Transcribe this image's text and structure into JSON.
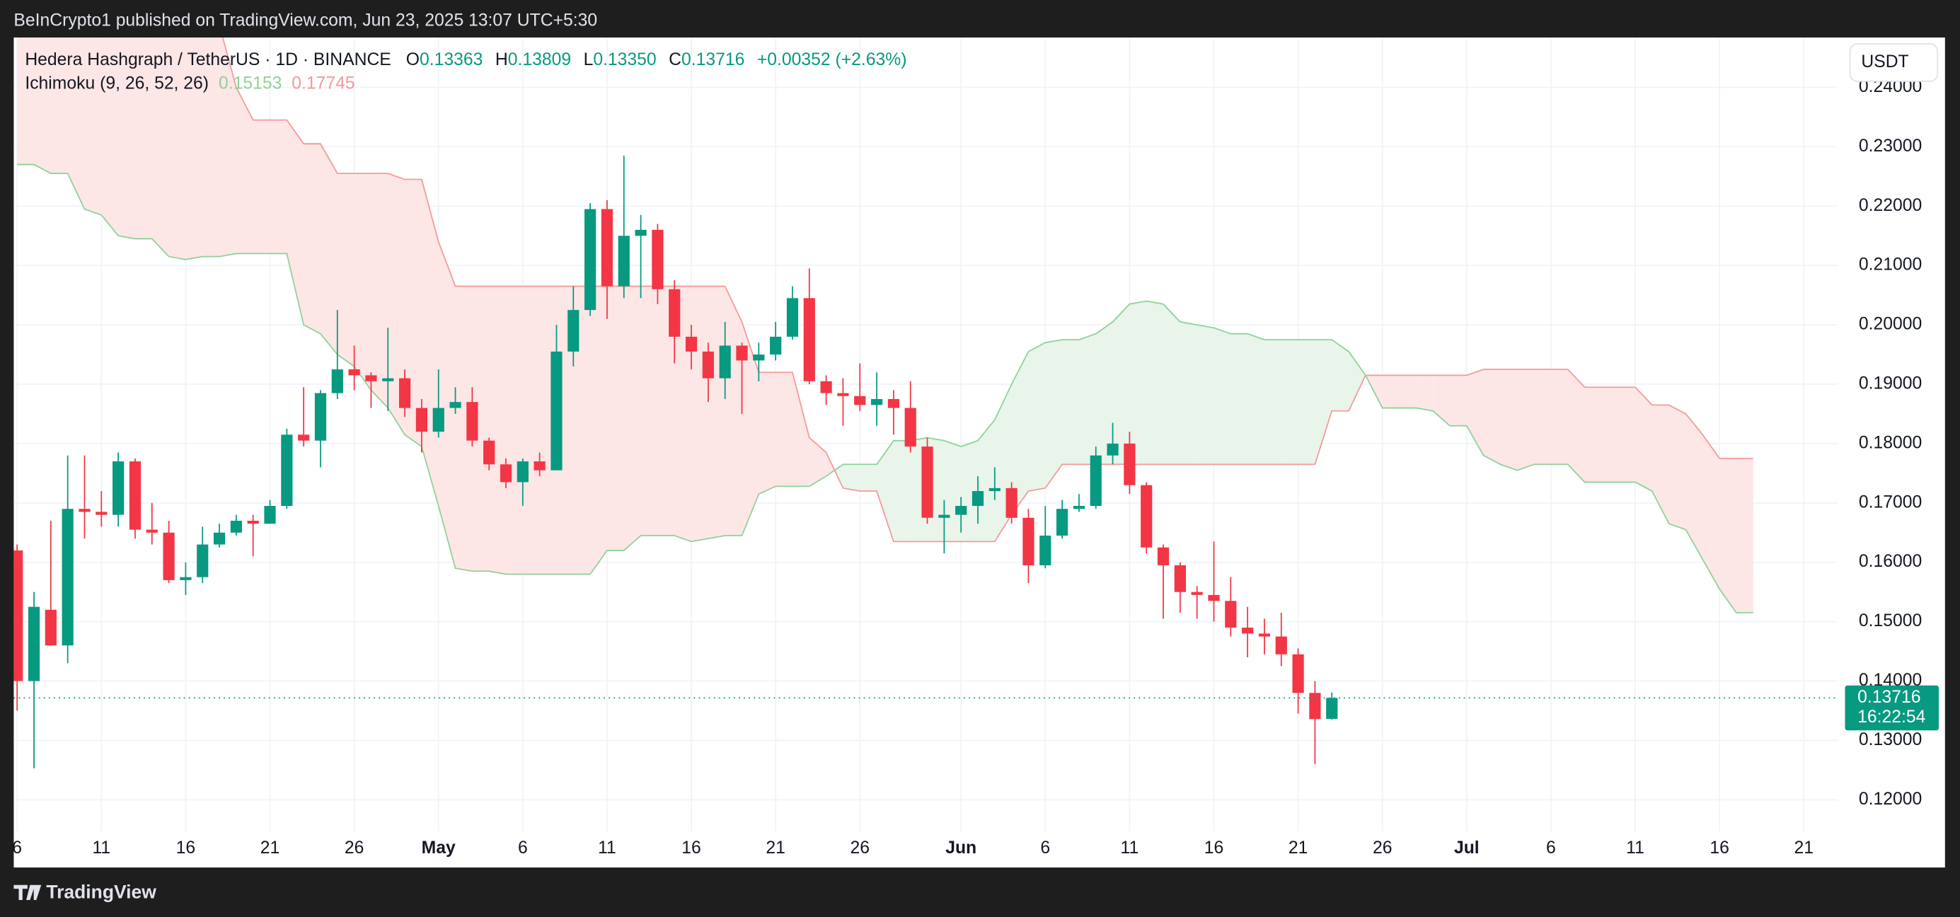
{
  "header": {
    "publisher": "BeInCrypto1 published on TradingView.com, Jun 23, 2025 13:07 UTC+5:30",
    "footer_logo": "TradingView"
  },
  "chart_data": {
    "type": "candlestick",
    "symbol": "Hedera Hashgraph / TetherUS · 1D · BINANCE",
    "legend": {
      "open_key": "O",
      "open": "0.13363",
      "high_key": "H",
      "high": "0.13809",
      "low_key": "L",
      "low": "0.13350",
      "close_key": "C",
      "close": "0.13716",
      "change": "+0.00352 (+2.63%)"
    },
    "currency": "USDT",
    "countdown": "16:22:54",
    "up_color": "#089981",
    "down_color": "#f23645",
    "open": [
      0.162,
      0.14,
      0.152,
      0.146,
      0.169,
      0.1685,
      0.168,
      0.177,
      0.1655,
      0.165,
      0.157,
      0.1575,
      0.163,
      0.165,
      0.167,
      0.1665,
      0.1695,
      0.1815,
      0.1805,
      0.1885,
      0.1925,
      0.1915,
      0.1905,
      0.191,
      0.186,
      0.182,
      0.186,
      0.187,
      0.1805,
      0.1765,
      0.1735,
      0.177,
      0.1755,
      0.1955,
      0.2025,
      0.2195,
      0.2065,
      0.215,
      0.216,
      0.206,
      0.198,
      0.1955,
      0.191,
      0.1965,
      0.194,
      0.195,
      0.198,
      0.2045,
      0.1905,
      0.1885,
      0.188,
      0.1865,
      0.1875,
      0.186,
      0.1795,
      0.1675,
      0.168,
      0.1695,
      0.172,
      0.1725,
      0.1675,
      0.1595,
      0.1645,
      0.169,
      0.1695,
      0.178,
      0.18,
      0.173,
      0.1625,
      0.1595,
      0.155,
      0.1545,
      0.1535,
      0.149,
      0.148,
      0.1475,
      0.1445,
      0.138,
      0.13363
    ],
    "high": [
      0.163,
      0.155,
      0.167,
      0.178,
      0.178,
      0.172,
      0.1785,
      0.1775,
      0.17,
      0.167,
      0.16,
      0.166,
      0.1665,
      0.168,
      0.168,
      0.1705,
      0.1825,
      0.1895,
      0.189,
      0.2025,
      0.1965,
      0.192,
      0.1995,
      0.1925,
      0.1875,
      0.1925,
      0.1895,
      0.1895,
      0.181,
      0.1775,
      0.1775,
      0.1785,
      0.2,
      0.2065,
      0.2205,
      0.221,
      0.2285,
      0.2185,
      0.217,
      0.2075,
      0.2,
      0.197,
      0.2005,
      0.197,
      0.197,
      0.2005,
      0.2065,
      0.2095,
      0.1915,
      0.191,
      0.1935,
      0.192,
      0.189,
      0.1905,
      0.181,
      0.1705,
      0.171,
      0.1745,
      0.176,
      0.1735,
      0.169,
      0.1695,
      0.1705,
      0.1715,
      0.1795,
      0.1835,
      0.182,
      0.1735,
      0.163,
      0.16,
      0.156,
      0.1635,
      0.1575,
      0.1525,
      0.1505,
      0.1515,
      0.1455,
      0.14,
      0.13809
    ],
    "low": [
      0.135,
      0.1253,
      0.146,
      0.143,
      0.164,
      0.166,
      0.166,
      0.164,
      0.163,
      0.1565,
      0.1545,
      0.1565,
      0.1625,
      0.1645,
      0.161,
      0.1665,
      0.169,
      0.1795,
      0.176,
      0.1875,
      0.189,
      0.186,
      0.1855,
      0.1845,
      0.1785,
      0.181,
      0.185,
      0.1795,
      0.1755,
      0.1725,
      0.1695,
      0.1745,
      0.1755,
      0.193,
      0.2015,
      0.201,
      0.2045,
      0.2045,
      0.2035,
      0.1935,
      0.1925,
      0.187,
      0.1875,
      0.185,
      0.1905,
      0.194,
      0.1975,
      0.19,
      0.1865,
      0.183,
      0.1855,
      0.183,
      0.1815,
      0.1785,
      0.1665,
      0.1615,
      0.165,
      0.1665,
      0.1705,
      0.1665,
      0.1565,
      0.159,
      0.164,
      0.1685,
      0.169,
      0.1765,
      0.1715,
      0.1615,
      0.1505,
      0.1515,
      0.1505,
      0.15,
      0.1475,
      0.144,
      0.1445,
      0.1425,
      0.1345,
      0.126,
      0.1335
    ],
    "close": [
      0.14,
      0.1525,
      0.146,
      0.169,
      0.1685,
      0.168,
      0.177,
      0.1655,
      0.165,
      0.157,
      0.1575,
      0.163,
      0.165,
      0.167,
      0.1665,
      0.1695,
      0.1815,
      0.1805,
      0.1885,
      0.1925,
      0.1915,
      0.1905,
      0.191,
      0.186,
      0.182,
      0.186,
      0.187,
      0.1805,
      0.1765,
      0.1735,
      0.177,
      0.1755,
      0.1955,
      0.2025,
      0.2195,
      0.2065,
      0.215,
      0.216,
      0.206,
      0.198,
      0.1955,
      0.191,
      0.1965,
      0.194,
      0.195,
      0.198,
      0.2045,
      0.1905,
      0.1885,
      0.188,
      0.1865,
      0.1875,
      0.186,
      0.1795,
      0.1675,
      0.168,
      0.1695,
      0.172,
      0.1725,
      0.1675,
      0.1595,
      0.1645,
      0.169,
      0.1695,
      0.178,
      0.18,
      0.173,
      0.1625,
      0.1595,
      0.155,
      0.1545,
      0.1535,
      0.149,
      0.148,
      0.1475,
      0.1445,
      0.138,
      0.1336,
      0.13716
    ],
    "indicator": {
      "name": "Ichimoku",
      "params": "(9, 26, 52, 26)"
    },
    "series": [
      {
        "color": "#8fd19a",
        "fill": "#e9f4ea",
        "values": [
          0.227,
          0.227,
          0.2255,
          0.2255,
          0.2195,
          0.2185,
          0.215,
          0.2145,
          0.2145,
          0.2115,
          0.211,
          0.2115,
          0.2115,
          0.212,
          0.212,
          0.212,
          0.212,
          0.2,
          0.1985,
          0.195,
          0.193,
          0.189,
          0.186,
          0.1815,
          0.1795,
          0.1695,
          0.159,
          0.1585,
          0.1585,
          0.158,
          0.158,
          0.158,
          0.158,
          0.158,
          0.158,
          0.162,
          0.162,
          0.1645,
          0.1645,
          0.1645,
          0.1635,
          0.164,
          0.1645,
          0.1645,
          0.1715,
          0.1728,
          0.1728,
          0.1728,
          0.1745,
          0.1765,
          0.1765,
          0.1765,
          0.1805,
          0.1805,
          0.181,
          0.1805,
          0.1795,
          0.1805,
          0.184,
          0.19,
          0.1955,
          0.197,
          0.1975,
          0.1975,
          0.1985,
          0.2005,
          0.2035,
          0.204,
          0.2035,
          0.2005,
          0.2,
          0.1995,
          0.1985,
          0.1985,
          0.1975,
          0.1975,
          0.1975,
          0.1975,
          0.1975,
          0.1955,
          0.1915,
          0.186,
          0.186,
          0.186,
          0.1855,
          0.183,
          0.183,
          0.178,
          0.1765,
          0.1755,
          0.1765,
          0.1765,
          0.1765,
          0.1735,
          0.1735,
          0.1735,
          0.1735,
          0.172,
          0.1665,
          0.1655,
          0.1605,
          0.1555,
          0.1515,
          0.15153
        ]
      },
      {
        "color": "#f29a9a",
        "fill": "#fde6e6",
        "values": [
          0.2505,
          0.2505,
          0.2505,
          0.2505,
          0.2505,
          0.2505,
          0.2505,
          0.2505,
          0.2505,
          0.2505,
          0.2505,
          0.2505,
          0.2505,
          0.24,
          0.2345,
          0.2345,
          0.2345,
          0.2305,
          0.2305,
          0.2255,
          0.2255,
          0.2255,
          0.2255,
          0.2245,
          0.2245,
          0.214,
          0.2065,
          0.2065,
          0.2065,
          0.2065,
          0.2065,
          0.2065,
          0.2065,
          0.2065,
          0.2065,
          0.2065,
          0.2065,
          0.2065,
          0.2065,
          0.2065,
          0.2065,
          0.2065,
          0.2065,
          0.2005,
          0.192,
          0.192,
          0.192,
          0.181,
          0.1785,
          0.1725,
          0.172,
          0.172,
          0.1635,
          0.1635,
          0.1635,
          0.1635,
          0.1635,
          0.1635,
          0.1635,
          0.168,
          0.172,
          0.1725,
          0.1765,
          0.1765,
          0.1765,
          0.1765,
          0.1765,
          0.1765,
          0.1765,
          0.1765,
          0.1765,
          0.1765,
          0.1765,
          0.1765,
          0.1765,
          0.1765,
          0.1765,
          0.1765,
          0.1855,
          0.1855,
          0.1915,
          0.1915,
          0.1915,
          0.1915,
          0.1915,
          0.1915,
          0.1915,
          0.1925,
          0.1925,
          0.1925,
          0.1925,
          0.1925,
          0.1925,
          0.1895,
          0.1895,
          0.1895,
          0.1895,
          0.1865,
          0.1865,
          0.185,
          0.1815,
          0.1775,
          0.1775,
          0.17745
        ]
      }
    ],
    "xlim": [
      -0.2,
      108.0
    ],
    "xticks": [
      {
        "value": 0,
        "label": "6"
      },
      {
        "value": 5,
        "label": "11"
      },
      {
        "value": 10,
        "label": "16"
      },
      {
        "value": 15,
        "label": "21"
      },
      {
        "value": 20,
        "label": "26"
      },
      {
        "value": 25,
        "label": "May"
      },
      {
        "value": 30,
        "label": "6"
      },
      {
        "value": 35,
        "label": "11"
      },
      {
        "value": 40,
        "label": "16"
      },
      {
        "value": 45,
        "label": "21"
      },
      {
        "value": 50,
        "label": "26"
      },
      {
        "value": 56,
        "label": "Jun"
      },
      {
        "value": 61,
        "label": "6"
      },
      {
        "value": 66,
        "label": "11"
      },
      {
        "value": 71,
        "label": "16"
      },
      {
        "value": 76,
        "label": "21"
      },
      {
        "value": 81,
        "label": "26"
      },
      {
        "value": 86,
        "label": "Jul"
      },
      {
        "value": 91,
        "label": "6"
      },
      {
        "value": 96,
        "label": "11"
      },
      {
        "value": 101,
        "label": "16"
      },
      {
        "value": 106,
        "label": "21"
      }
    ],
    "ylim": [
      0.1147,
      0.2484
    ],
    "yticks": [
      {
        "value": 0.12,
        "label": "0.12000"
      },
      {
        "value": 0.13,
        "label": "0.13000"
      },
      {
        "value": 0.14,
        "label": "0.14000"
      },
      {
        "value": 0.15,
        "label": "0.15000"
      },
      {
        "value": 0.16,
        "label": "0.16000"
      },
      {
        "value": 0.17,
        "label": "0.17000"
      },
      {
        "value": 0.18,
        "label": "0.18000"
      },
      {
        "value": 0.19,
        "label": "0.19000"
      },
      {
        "value": 0.2,
        "label": "0.20000"
      },
      {
        "value": 0.21,
        "label": "0.21000"
      },
      {
        "value": 0.22,
        "label": "0.22000"
      },
      {
        "value": 0.23,
        "label": "0.23000"
      },
      {
        "value": 0.24,
        "label": "0.24000"
      }
    ],
    "grid": true
  }
}
